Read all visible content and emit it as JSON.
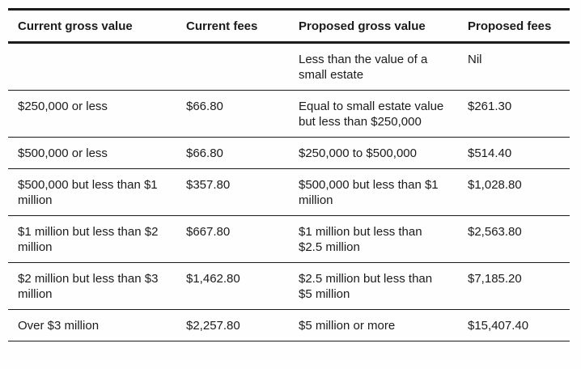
{
  "headers": [
    "Current gross value",
    "Current fees",
    "Proposed gross value",
    "Proposed fees"
  ],
  "rows": [
    [
      "",
      "",
      "Less than the value of a small estate",
      "Nil"
    ],
    [
      "$250,000 or less",
      "$66.80",
      "Equal to small estate value but less than $250,000",
      "$261.30"
    ],
    [
      "$500,000 or less",
      "$66.80",
      "$250,000 to $500,000",
      "$514.40"
    ],
    [
      "$500,000 but less than $1 million",
      "$357.80",
      "$500,000 but less than $1 million",
      "$1,028.80"
    ],
    [
      "$1 million but less than $2 million",
      "$667.80",
      "$1 million but less than $2.5 million",
      "$2,563.80"
    ],
    [
      "$2 million but less than $3 million",
      "$1,462.80",
      "$2.5 million but less than $5 million",
      "$7,185.20"
    ],
    [
      "Over $3 million",
      "$2,257.80",
      "$5 million or more",
      "$15,407.40"
    ]
  ]
}
